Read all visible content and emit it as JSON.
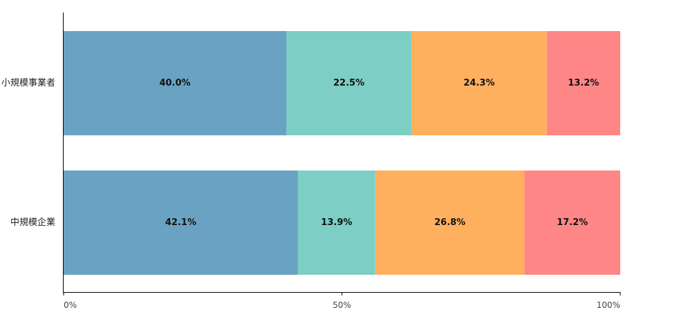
{
  "chart_data": {
    "type": "bar",
    "orientation": "horizontal",
    "stacked": true,
    "percent": true,
    "categories": [
      "小規模事業者",
      "中規模企業"
    ],
    "series": [
      {
        "values": [
          40.0,
          42.1
        ],
        "color": "#6aa2c3"
      },
      {
        "values": [
          22.5,
          13.9
        ],
        "color": "#7dcec5"
      },
      {
        "values": [
          24.3,
          26.8
        ],
        "color": "#ffb05f"
      },
      {
        "values": [
          13.2,
          17.2
        ],
        "color": "#ff8686"
      }
    ],
    "data_labels": [
      [
        "40.0%",
        "22.5%",
        "24.3%",
        "13.2%"
      ],
      [
        "42.1%",
        "13.9%",
        "26.8%",
        "17.2%"
      ]
    ],
    "x_ticks": [
      0,
      50,
      100
    ],
    "x_tick_labels": [
      "0%",
      "50%",
      "100%"
    ],
    "xlim": [
      0,
      100
    ],
    "grid": false,
    "legend": "none"
  }
}
